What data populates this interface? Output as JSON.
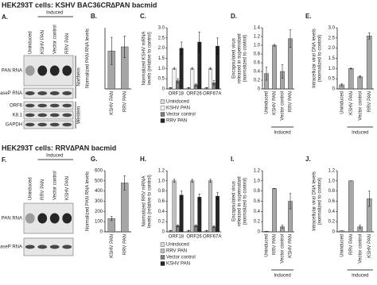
{
  "rows": [
    {
      "title": "HEK293T cells: KSHV BAC36CR∆PAN bacmid"
    },
    {
      "title": "HEK293T cells: RRV∆PAN bacmid"
    }
  ],
  "blots": [
    {
      "letter": "A.",
      "group_label": "Induced",
      "lanes": [
        "Uninduced",
        "KSHV PAN",
        "Vector control",
        "RRV PAN"
      ],
      "rows": [
        "PAN RNA",
        "RNaseP RNA",
        "ORF6",
        "K8.1",
        "GAPDH"
      ],
      "methods": [
        "Northern",
        "Western"
      ]
    },
    {
      "letter": "F.",
      "group_label": "Induced",
      "lanes": [
        "Uninduced",
        "RRV PAN",
        "Vector control",
        "KSHV PAN"
      ],
      "rows": [
        "PAN RNA",
        "RNaseP RNA"
      ]
    }
  ],
  "chart_data": [
    {
      "letter": "B.",
      "type": "bar",
      "ylabel": [
        "Normalized PAN RNA levels"
      ],
      "color": "#a6a6a6",
      "categories": [
        "KSHV PAN",
        "RRV PAN"
      ],
      "values": [
        2.8,
        3.1
      ],
      "errors": [
        1.0,
        0.8
      ],
      "ylim": [
        0,
        4.5
      ]
    },
    {
      "letter": "C.",
      "type": "bar",
      "ylabel": [
        "Normalized KSHV mRNA",
        "levels (relative to control)"
      ],
      "categories": [
        "ORF18",
        "ORF26",
        "ORF67A"
      ],
      "series": [
        {
          "name": "Uninduced",
          "color": "#d9d9d9",
          "values": [
            0.05,
            0.05,
            0.05
          ],
          "errors": [
            0.02,
            0.02,
            0.02
          ]
        },
        {
          "name": "KSHV PAN",
          "color": "#f2f2f2",
          "values": [
            1.0,
            1.0,
            1.0
          ],
          "errors": [
            0.05,
            0.05,
            0.05
          ]
        },
        {
          "name": "Vector control",
          "color": "#7f7f7f",
          "values": [
            0.4,
            0.2,
            0.3
          ],
          "errors": [
            0.1,
            0.05,
            0.1
          ]
        },
        {
          "name": "RRV PAN",
          "color": "#262626",
          "values": [
            2.0,
            2.3,
            2.1
          ],
          "errors": [
            0.3,
            0.5,
            0.4
          ]
        }
      ],
      "ylim": [
        0,
        3
      ],
      "yticks": [
        0,
        0.5,
        {
          "value": 1,
          "label": "1.0"
        },
        1.5,
        {
          "value": 2,
          "label": "2.0"
        },
        2.5,
        {
          "value": 3,
          "label": "3.0"
        }
      ]
    },
    {
      "letter": "D.",
      "type": "bar",
      "ylabel": [
        "Encapsulated virus",
        "released in supernatant",
        "(normalized to control)"
      ],
      "color": "#a6a6a6",
      "categories": [
        "Uninduced",
        "KSHV PAN",
        "Vector control",
        "RRV PAN"
      ],
      "values": [
        0.35,
        1.0,
        0.4,
        1.15
      ],
      "errors": [
        0.15,
        0.02,
        0.15,
        0.2
      ],
      "group_label": "Induced",
      "ylim": [
        0,
        1.4
      ],
      "yticks": [
        0,
        0.2,
        0.4,
        0.6,
        0.8,
        {
          "value": 1,
          "label": "1.0"
        },
        1.2,
        1.4
      ]
    },
    {
      "letter": "E.",
      "type": "bar",
      "ylabel": [
        "Intracellular viral DNA levels",
        "(normalized to control)"
      ],
      "color": "#a6a6a6",
      "categories": [
        "Uninduced",
        "KSHV PAN",
        "Vector control",
        "RRV PAN"
      ],
      "values": [
        0.2,
        1.0,
        0.6,
        2.6
      ],
      "errors": [
        0.05,
        0.02,
        0.05,
        0.15
      ],
      "group_label": "Induced",
      "ylim": [
        0,
        3
      ],
      "yticks": [
        0,
        0.5,
        {
          "value": 1,
          "label": "1.0"
        },
        1.5,
        {
          "value": 2,
          "label": "2.0"
        },
        2.5,
        {
          "value": 3,
          "label": "3.0"
        }
      ]
    },
    {
      "letter": "G.",
      "type": "bar",
      "ylabel": [
        "Normalized PAN RNA levels"
      ],
      "color": "#a6a6a6",
      "categories": [
        "KSHV PAN",
        "RRV PAN"
      ],
      "values": [
        130,
        480
      ],
      "errors": [
        20,
        70
      ],
      "ylim": [
        0,
        600
      ],
      "yticks": [
        0,
        100,
        200,
        300,
        400,
        500,
        600
      ]
    },
    {
      "letter": "H.",
      "type": "bar",
      "ylabel": [
        "Normalized RRV mRNA",
        "levels (relative to control)"
      ],
      "categories": [
        "ORF18",
        "ORF26",
        "ORF67A"
      ],
      "series": [
        {
          "name": "Uninduced",
          "color": "#d9d9d9",
          "values": [
            0.02,
            0.02,
            0.02
          ],
          "errors": [
            0.01,
            0.01,
            0.01
          ]
        },
        {
          "name": "RRV PAN",
          "color": "#bfbfbf",
          "values": [
            1.0,
            1.0,
            1.0
          ],
          "errors": [
            0.03,
            0.03,
            0.03
          ]
        },
        {
          "name": "Vector control",
          "color": "#7f7f7f",
          "values": [
            0.12,
            0.12,
            0.1
          ],
          "errors": [
            0.02,
            0.02,
            0.02
          ]
        },
        {
          "name": "KSHV PAN",
          "color": "#262626",
          "values": [
            0.72,
            0.68,
            0.7
          ],
          "errors": [
            0.08,
            0.06,
            0.07
          ]
        }
      ],
      "ylim": [
        0,
        1.2
      ],
      "yticks": [
        0,
        0.2,
        0.4,
        0.6,
        0.8,
        {
          "value": 1,
          "label": "1.0"
        },
        1.2
      ]
    },
    {
      "letter": "I.",
      "type": "bar",
      "ylabel": [
        "Encapsulated virus",
        "released in supernatant",
        "(normalized to control)"
      ],
      "color": "#a6a6a6",
      "categories": [
        "Uninduced",
        "RRV PAN",
        "Vector control",
        "KSHV PAN"
      ],
      "values": [
        0.01,
        0.85,
        0.1,
        0.6
      ],
      "errors": [
        0,
        0,
        0.03,
        0.15
      ],
      "group_label": "Induced",
      "ylim": [
        0,
        1.2
      ],
      "yticks": [
        0,
        0.2,
        0.4,
        0.6,
        0.8,
        {
          "value": 1,
          "label": "1.0"
        },
        1.2
      ]
    },
    {
      "letter": "J.",
      "type": "bar",
      "ylabel": [
        "Intracellular viral DNA levels",
        "(normalized to control)"
      ],
      "color": "#a6a6a6",
      "categories": [
        "Uninduced",
        "RRV PAN",
        "Vector control",
        "KSHV PAN"
      ],
      "values": [
        0.02,
        1.0,
        0.1,
        0.65
      ],
      "errors": [
        0,
        0,
        0.03,
        0.15
      ],
      "group_label": "Induced",
      "ylim": [
        0,
        1.2
      ],
      "yticks": [
        0,
        0.2,
        0.4,
        0.6,
        0.8,
        {
          "value": 1,
          "label": "1.0"
        },
        1.2
      ]
    }
  ]
}
